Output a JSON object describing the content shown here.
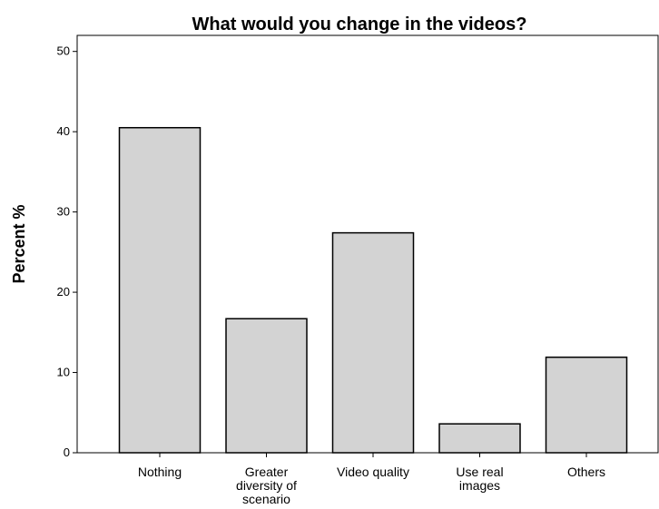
{
  "chart_data": {
    "type": "bar",
    "title": "What would you change in the videos?",
    "xlabel": "",
    "ylabel": "Percent %",
    "categories": [
      "Nothing",
      "Greater diversity of scenario",
      "Video quality",
      "Use real images",
      "Others"
    ],
    "category_lines": [
      [
        "Nothing"
      ],
      [
        "Greater",
        "diversity of",
        "scenario"
      ],
      [
        "Video quality"
      ],
      [
        "Use real",
        "images"
      ],
      [
        "Others"
      ]
    ],
    "values": [
      40.5,
      16.7,
      27.4,
      3.6,
      11.9
    ],
    "ylim": [
      0,
      52
    ],
    "yticks": [
      0,
      10,
      20,
      30,
      40,
      50
    ],
    "grid": false,
    "legend": "none",
    "bar_color": "#d3d3d3",
    "bar_edge_color": "#000000"
  }
}
